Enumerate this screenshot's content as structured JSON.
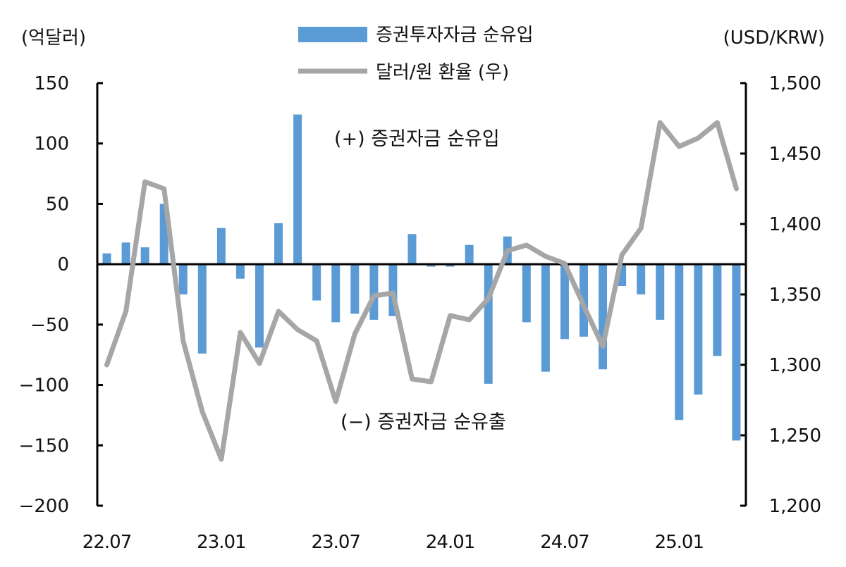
{
  "chart_data": {
    "type": "bar+line",
    "left_axis_unit": "(억달러)",
    "right_axis_unit": "(USD/KRW)",
    "legend": [
      {
        "label": "증권투자자금 순유입",
        "type": "bar",
        "color": "#5b9bd5"
      },
      {
        "label": "달러/원 환율 (우)",
        "type": "line",
        "color": "#a6a6a6"
      }
    ],
    "annotations": {
      "positive": "(+) 증권자금 순유입",
      "negative": "(−) 증권자금 순유출"
    },
    "left_axis": {
      "ylim": [
        -200,
        150
      ],
      "ticks": [
        150,
        100,
        50,
        0,
        -50,
        -100,
        -150,
        -200
      ],
      "tick_labels": [
        "150",
        "100",
        "50",
        "0",
        "−50",
        "−100",
        "−150",
        "−200"
      ]
    },
    "right_axis": {
      "ylim": [
        1200,
        1500
      ],
      "ticks": [
        1500,
        1450,
        1400,
        1350,
        1300,
        1250,
        1200
      ],
      "tick_labels": [
        "1,500",
        "1,450",
        "1,400",
        "1,350",
        "1,300",
        "1,250",
        "1,200"
      ]
    },
    "x_tick_labels": [
      "22.07",
      "23.01",
      "23.07",
      "24.01",
      "24.07",
      "25.01"
    ],
    "x_tick_months": [
      "2022-07",
      "2023-01",
      "2023-07",
      "2024-01",
      "2024-07",
      "2025-01"
    ],
    "months": [
      "2022-07",
      "2022-08",
      "2022-09",
      "2022-10",
      "2022-11",
      "2022-12",
      "2023-01",
      "2023-02",
      "2023-03",
      "2023-04",
      "2023-05",
      "2023-06",
      "2023-07",
      "2023-08",
      "2023-09",
      "2023-10",
      "2023-11",
      "2023-12",
      "2024-01",
      "2024-02",
      "2024-03",
      "2024-04",
      "2024-05",
      "2024-06",
      "2024-07",
      "2024-08",
      "2024-09",
      "2024-10",
      "2024-11",
      "2024-12",
      "2025-01",
      "2025-02",
      "2025-03",
      "2025-04"
    ],
    "series": [
      {
        "name": "증권투자자금 순유입",
        "type": "bar",
        "values": [
          9,
          18,
          14,
          50,
          -25,
          -74,
          30,
          -12,
          -69,
          34,
          124,
          -30,
          -48,
          -41,
          -46,
          -43,
          25,
          -2,
          -2,
          16,
          -99,
          23,
          -48,
          -89,
          -62,
          -60,
          -87,
          -18,
          -25,
          -46,
          -129,
          -108,
          -76,
          -146
        ]
      },
      {
        "name": "달러/원 환율 (우)",
        "type": "line",
        "values": [
          1300,
          1338,
          1430,
          1425,
          1317,
          1267,
          1233,
          1323,
          1301,
          1338,
          1325,
          1317,
          1274,
          1322,
          1349,
          1351,
          1290,
          1288,
          1335,
          1332,
          1347,
          1381,
          1385,
          1377,
          1372,
          1342,
          1313,
          1378,
          1397,
          1472,
          1455,
          1461,
          1472,
          1425
        ]
      }
    ]
  }
}
